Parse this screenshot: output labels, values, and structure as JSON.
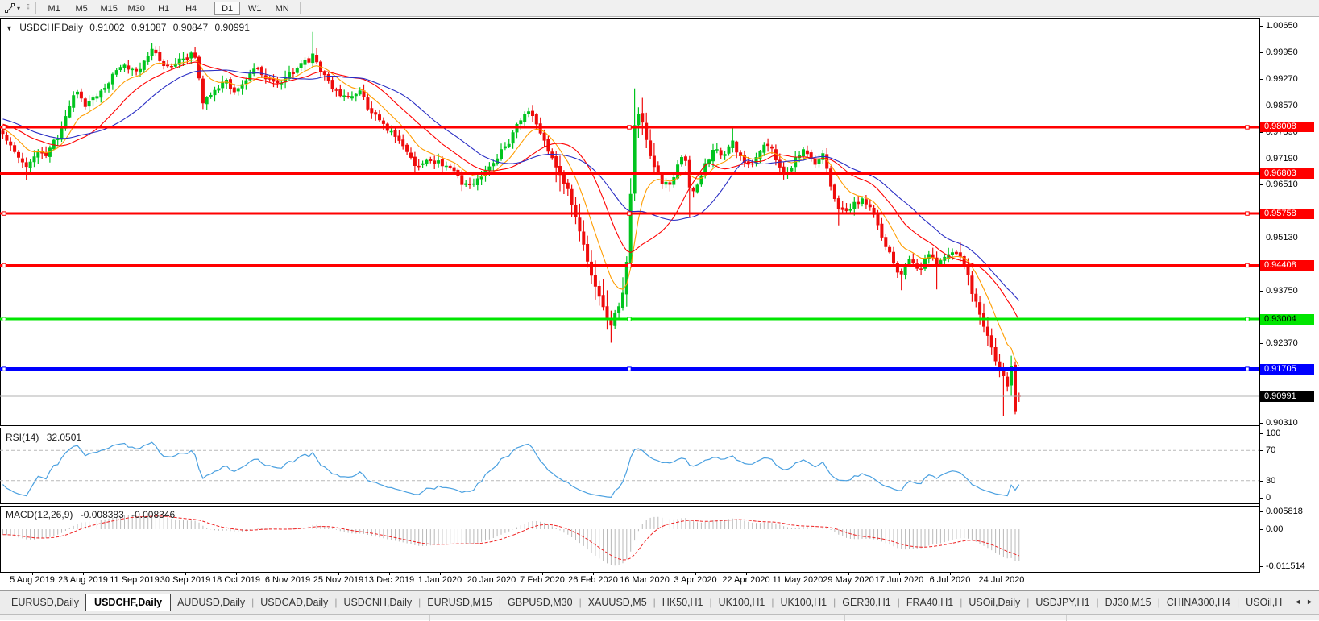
{
  "toolbar": {
    "tool_icon": "trendline-tool",
    "dropdown_caret": "▾",
    "timeframes": [
      "M1",
      "M5",
      "M15",
      "M30",
      "H1",
      "H4",
      "D1",
      "W1",
      "MN"
    ],
    "active_timeframe": "D1"
  },
  "chart": {
    "title_arrow": "▼",
    "symbol": "USDCHF,Daily",
    "quote": {
      "open": "0.91002",
      "high": "0.91087",
      "low": "0.90847",
      "close": "0.90991"
    }
  },
  "indicators": {
    "rsi": {
      "label": "RSI(14)",
      "value": "32.0501"
    },
    "macd": {
      "label": "MACD(12,26,9)",
      "value_main": "-0.008383",
      "value_signal": "-0.008346"
    }
  },
  "chart_data": [
    {
      "type": "candlestick",
      "title": "USDCHF,Daily",
      "ohlc_display": {
        "open": 0.91002,
        "high": 0.91087,
        "low": 0.90847,
        "close": 0.90991
      },
      "y_axis": {
        "min": 0.90237,
        "max": 1.00863,
        "visible_ticks": [
          "1.00650",
          "0.99950",
          "0.99270",
          "0.98570",
          "0.97890",
          "0.97190",
          "0.96510",
          "0.95130",
          "0.93750",
          "0.92370",
          "0.90310"
        ]
      },
      "x_axis": {
        "first_tick_x": 40,
        "tick_spacing_px": 63.3,
        "tick_labels": [
          "5 Aug 2019",
          "23 Aug 2019",
          "11 Sep 2019",
          "30 Sep 2019",
          "18 Oct 2019",
          "6 Nov 2019",
          "25 Nov 2019",
          "13 Dec 2019",
          "1 Jan 2020",
          "20 Jan 2020",
          "7 Feb 2020",
          "26 Feb 2020",
          "16 Mar 2020",
          "3 Apr 2020",
          "22 Apr 2020",
          "11 May 2020",
          "29 May 2020",
          "17 Jun 2020",
          "6 Jul 2020",
          "24 Jul 2020"
        ]
      },
      "candles": {
        "spacing_px": 4.87,
        "first_x": 3.5,
        "count": 260,
        "up_color": "#00c41e",
        "down_color": "#ee0c0c"
      },
      "close_path": [
        [
          3,
          0.978
        ],
        [
          10,
          0.977
        ],
        [
          16,
          0.9738
        ],
        [
          24,
          0.9705
        ],
        [
          32,
          0.9692
        ],
        [
          40,
          0.9725
        ],
        [
          48,
          0.9738
        ],
        [
          56,
          0.9712
        ],
        [
          64,
          0.9745
        ],
        [
          72,
          0.977
        ],
        [
          82,
          0.983
        ],
        [
          90,
          0.9868
        ],
        [
          97,
          0.9895
        ],
        [
          106,
          0.986
        ],
        [
          114,
          0.9875
        ],
        [
          122,
          0.9892
        ],
        [
          132,
          0.9915
        ],
        [
          142,
          0.9938
        ],
        [
          152,
          0.9962
        ],
        [
          162,
          0.995
        ],
        [
          170,
          0.9938
        ],
        [
          180,
          0.9976
        ],
        [
          188,
          0.9998
        ],
        [
          196,
          0.998
        ],
        [
          204,
          0.9962
        ],
        [
          212,
          0.997
        ],
        [
          222,
          0.998
        ],
        [
          232,
          0.9988
        ],
        [
          240,
          0.9994
        ],
        [
          246,
          0.994
        ],
        [
          252,
          0.987
        ],
        [
          258,
          0.988
        ],
        [
          266,
          0.9895
        ],
        [
          274,
          0.991
        ],
        [
          282,
          0.9918
        ],
        [
          292,
          0.9882
        ],
        [
          300,
          0.99
        ],
        [
          308,
          0.993
        ],
        [
          318,
          0.9958
        ],
        [
          326,
          0.9945
        ],
        [
          334,
          0.993
        ],
        [
          342,
          0.992
        ],
        [
          352,
          0.993
        ],
        [
          362,
          0.9944
        ],
        [
          372,
          0.9955
        ],
        [
          382,
          0.9968
        ],
        [
          389,
          0.9988
        ],
        [
          395,
          0.9955
        ],
        [
          403,
          0.9932
        ],
        [
          412,
          0.991
        ],
        [
          422,
          0.9885
        ],
        [
          431,
          0.987
        ],
        [
          440,
          0.9878
        ],
        [
          448,
          0.9885
        ],
        [
          456,
          0.9852
        ],
        [
          464,
          0.9838
        ],
        [
          472,
          0.9824
        ],
        [
          482,
          0.98
        ],
        [
          490,
          0.9782
        ],
        [
          498,
          0.9758
        ],
        [
          506,
          0.9735
        ],
        [
          514,
          0.9705
        ],
        [
          521,
          0.9692
        ],
        [
          528,
          0.971
        ],
        [
          536,
          0.9724
        ],
        [
          544,
          0.9712
        ],
        [
          552,
          0.97
        ],
        [
          560,
          0.9682
        ],
        [
          568,
          0.9665
        ],
        [
          576,
          0.965
        ],
        [
          584,
          0.9638
        ],
        [
          592,
          0.9658
        ],
        [
          601,
          0.968
        ],
        [
          609,
          0.97
        ],
        [
          617,
          0.9725
        ],
        [
          625,
          0.9748
        ],
        [
          633,
          0.977
        ],
        [
          641,
          0.98
        ],
        [
          648,
          0.9822
        ],
        [
          656,
          0.984
        ],
        [
          664,
          0.9818
        ],
        [
          672,
          0.9788
        ],
        [
          680,
          0.975
        ],
        [
          688,
          0.972
        ],
        [
          696,
          0.9672
        ],
        [
          704,
          0.964
        ],
        [
          712,
          0.959
        ],
        [
          719,
          0.954
        ],
        [
          726,
          0.9482
        ],
        [
          733,
          0.943
        ],
        [
          740,
          0.939
        ],
        [
          746,
          0.934
        ],
        [
          752,
          0.93
        ],
        [
          757,
          0.9282
        ],
        [
          762,
          0.931
        ],
        [
          768,
          0.933
        ],
        [
          773,
          0.936
        ],
        [
          778,
          0.944
        ],
        [
          783,
          0.964
        ],
        [
          788,
          0.982
        ],
        [
          793,
          0.984
        ],
        [
          798,
          0.98
        ],
        [
          803,
          0.976
        ],
        [
          810,
          0.9695
        ],
        [
          820,
          0.9655
        ],
        [
          832,
          0.9645
        ],
        [
          842,
          0.97
        ],
        [
          850,
          0.9722
        ],
        [
          858,
          0.9612
        ],
        [
          866,
          0.9658
        ],
        [
          876,
          0.971
        ],
        [
          886,
          0.974
        ],
        [
          896,
          0.9718
        ],
        [
          903,
          0.9745
        ],
        [
          910,
          0.9756
        ],
        [
          918,
          0.972
        ],
        [
          926,
          0.97
        ],
        [
          934,
          0.9712
        ],
        [
          942,
          0.973
        ],
        [
          950,
          0.975
        ],
        [
          958,
          0.9742
        ],
        [
          966,
          0.971
        ],
        [
          974,
          0.9688
        ],
        [
          982,
          0.9705
        ],
        [
          990,
          0.973
        ],
        [
          998,
          0.9742
        ],
        [
          1006,
          0.9718
        ],
        [
          1014,
          0.97
        ],
        [
          1022,
          0.9725
        ],
        [
          1030,
          0.966
        ],
        [
          1040,
          0.96
        ],
        [
          1052,
          0.957
        ],
        [
          1062,
          0.9598
        ],
        [
          1072,
          0.961
        ],
        [
          1082,
          0.9588
        ],
        [
          1092,
          0.954
        ],
        [
          1100,
          0.949
        ],
        [
          1110,
          0.9448
        ],
        [
          1118,
          0.9412
        ],
        [
          1128,
          0.946
        ],
        [
          1140,
          0.9436
        ],
        [
          1152,
          0.9468
        ],
        [
          1164,
          0.9442
        ],
        [
          1172,
          0.947
        ],
        [
          1180,
          0.9487
        ],
        [
          1188,
          0.9468
        ],
        [
          1197,
          0.944
        ],
        [
          1205,
          0.9378
        ],
        [
          1212,
          0.9335
        ],
        [
          1220,
          0.9288
        ],
        [
          1228,
          0.9235
        ],
        [
          1236,
          0.9192
        ],
        [
          1244,
          0.915
        ],
        [
          1250,
          0.9125
        ],
        [
          1255,
          0.918
        ],
        [
          1260,
          0.906
        ],
        [
          1266,
          0.9099
        ]
      ],
      "wick_events": [
        [
          32,
          "low",
          0.9663
        ],
        [
          188,
          "high",
          1.0021
        ],
        [
          389,
          "high",
          1.0049
        ],
        [
          757,
          "low",
          0.9239
        ],
        [
          786,
          "high",
          0.9902
        ],
        [
          858,
          "low",
          0.9566
        ],
        [
          910,
          "high",
          0.9801
        ],
        [
          1040,
          "low",
          0.9545
        ],
        [
          1118,
          "low",
          0.9376
        ],
        [
          1164,
          "low",
          0.9378
        ],
        [
          1244,
          "low",
          0.9048
        ]
      ],
      "volatility_zones": [
        [
          690,
          815,
          2.4
        ],
        [
          1190,
          1270,
          1.6
        ]
      ],
      "moving_averages": [
        {
          "name": "fast",
          "type": "EMA",
          "period": 10,
          "color": "#ff9d00"
        },
        {
          "name": "medium",
          "type": "SMA",
          "period": 20,
          "color": "#ff0000"
        },
        {
          "name": "slow",
          "type": "SMA",
          "period": 30,
          "color": "#2a2ec4"
        }
      ],
      "horizontal_lines": [
        {
          "price": 0.98008,
          "label": "0.98008",
          "color": "#ff0000",
          "text_color": "#ffffff",
          "width": 3,
          "selected": true
        },
        {
          "price": 0.96803,
          "label": "0.96803",
          "color": "#ff0000",
          "text_color": "#ffffff",
          "width": 3,
          "selected": false
        },
        {
          "price": 0.95758,
          "label": "0.95758",
          "color": "#ff0000",
          "text_color": "#ffffff",
          "width": 3,
          "selected": true
        },
        {
          "price": 0.94408,
          "label": "0.94408",
          "color": "#ff0000",
          "text_color": "#ffffff",
          "width": 3,
          "selected": true
        },
        {
          "price": 0.93004,
          "label": "0.93004",
          "color": "#00e600",
          "text_color": "#000000",
          "width": 3,
          "selected": true
        },
        {
          "price": 0.91705,
          "label": "0.91705",
          "color": "#0000ff",
          "text_color": "#ffffff",
          "width": 4,
          "selected": true
        }
      ],
      "current_price": {
        "value": 0.90991,
        "label": "0.90991",
        "line_color": "#b0b0b0",
        "badge_bg": "#000000",
        "badge_text": "#ffffff"
      }
    },
    {
      "type": "line",
      "title": "RSI(14)",
      "last_value": 32.0501,
      "levels": [
        30,
        70
      ],
      "axis_ticks": [
        "100",
        "70",
        "30",
        "0"
      ],
      "line_color": "#4aa0e0",
      "level_color": "#b9b9b9",
      "period": 14,
      "source": "computed from candlestick closes"
    },
    {
      "type": "histogram+line",
      "title": "MACD(12,26,9)",
      "last_values": {
        "macd": -0.008383,
        "signal": -0.008346
      },
      "axis_ticks": [
        "0.005818",
        "0.00",
        "-0.011514"
      ],
      "histogram_color": "#b9b9b9",
      "signal_color": "#ee2222",
      "params": {
        "fast": 12,
        "slow": 26,
        "signal": 9
      },
      "source": "computed from candlestick closes"
    }
  ],
  "tabs": {
    "items": [
      "EURUSD,Daily",
      "USDCHF,Daily",
      "AUDUSD,Daily",
      "USDCAD,Daily",
      "USDCNH,Daily",
      "EURUSD,M15",
      "GBPUSD,M30",
      "XAUUSD,M5",
      "HK50,H1",
      "UK100,H1",
      "UK100,H1",
      "GER30,H1",
      "FRA40,H1",
      "USOil,Daily",
      "USDJPY,H1",
      "DJ30,M15",
      "CHINA300,H4",
      "USOil,H"
    ],
    "active": "USDCHF,Daily",
    "scroll_left": "◄",
    "scroll_right": "►"
  }
}
